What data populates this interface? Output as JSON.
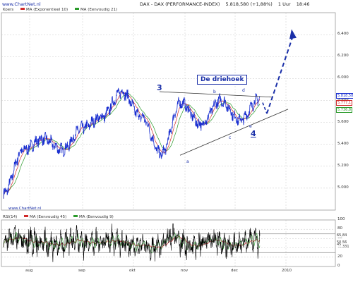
{
  "header": {
    "site": "www.ChartNet.nl",
    "instrument": "DAX - DAX (PERFORMANCE-INDEX)",
    "last_value": "5.818,580",
    "change": "(+1,88%)",
    "interval": "1 Uur",
    "time": "18:46"
  },
  "price_legend": {
    "koers": "Koers",
    "ma1": "MA (Exponentieel 10)",
    "ma2": "MA (Eenvoudig 21)"
  },
  "rsi_legend": {
    "rsi": "RSI(14)",
    "ma1": "MA (Eenvoudig 45)",
    "ma2": "MA (Eenvoudig 9)"
  },
  "footer_watermark": "www.ChartNet.nl",
  "annotations": {
    "title_box": "De driehoek",
    "wave3": "3",
    "wave4": "4",
    "a": "a",
    "b": "b",
    "c": "c",
    "d": "d",
    "e": "e"
  },
  "colors": {
    "price": "#1a2fd0",
    "ma_fast": "#d02a2a",
    "ma_slow": "#2a9a2a",
    "rsi": "#000000",
    "annotation": "#1a2fa8",
    "grid": "#c8c8c8"
  },
  "chart_data": [
    {
      "type": "line",
      "title": "DAX - DAX (PERFORMANCE-INDEX)",
      "ylim": [
        4800,
        6600
      ],
      "yticks": [
        "6.400",
        "6.200",
        "6.000",
        "5.800",
        "5.600",
        "5.400",
        "5.200",
        "5.000"
      ],
      "price_labels": [
        "5.818,58",
        "5.777,1",
        "5.736,8"
      ],
      "xlabels": [
        "aug",
        "sep",
        "okt",
        "nov",
        "dec",
        "2010"
      ],
      "series": [
        {
          "name": "Koers",
          "x": [
            "jul",
            "aug",
            "aug",
            "sep",
            "sep",
            "okt",
            "okt",
            "okt",
            "nov",
            "nov",
            "nov",
            "dec",
            "dec",
            "dec"
          ],
          "values": [
            4950,
            5350,
            5450,
            5350,
            5550,
            5650,
            5880,
            5650,
            5310,
            5780,
            5580,
            5800,
            5620,
            5818
          ]
        },
        {
          "name": "MA (Exponentieel 10)",
          "values": []
        },
        {
          "name": "MA (Eenvoudig 21)",
          "values": []
        }
      ],
      "annotations": [
        "3",
        "4",
        "a",
        "b",
        "c",
        "d",
        "e",
        "De driehoek"
      ]
    },
    {
      "type": "line",
      "title": "RSI(14)",
      "ylim": [
        0,
        100
      ],
      "yticks": [
        "100",
        "80",
        "60",
        "40",
        "20",
        "0"
      ],
      "value_labels": [
        "65,84",
        "50,56",
        "40,331",
        "45"
      ],
      "series": [
        {
          "name": "RSI(14)",
          "values": []
        }
      ]
    }
  ]
}
